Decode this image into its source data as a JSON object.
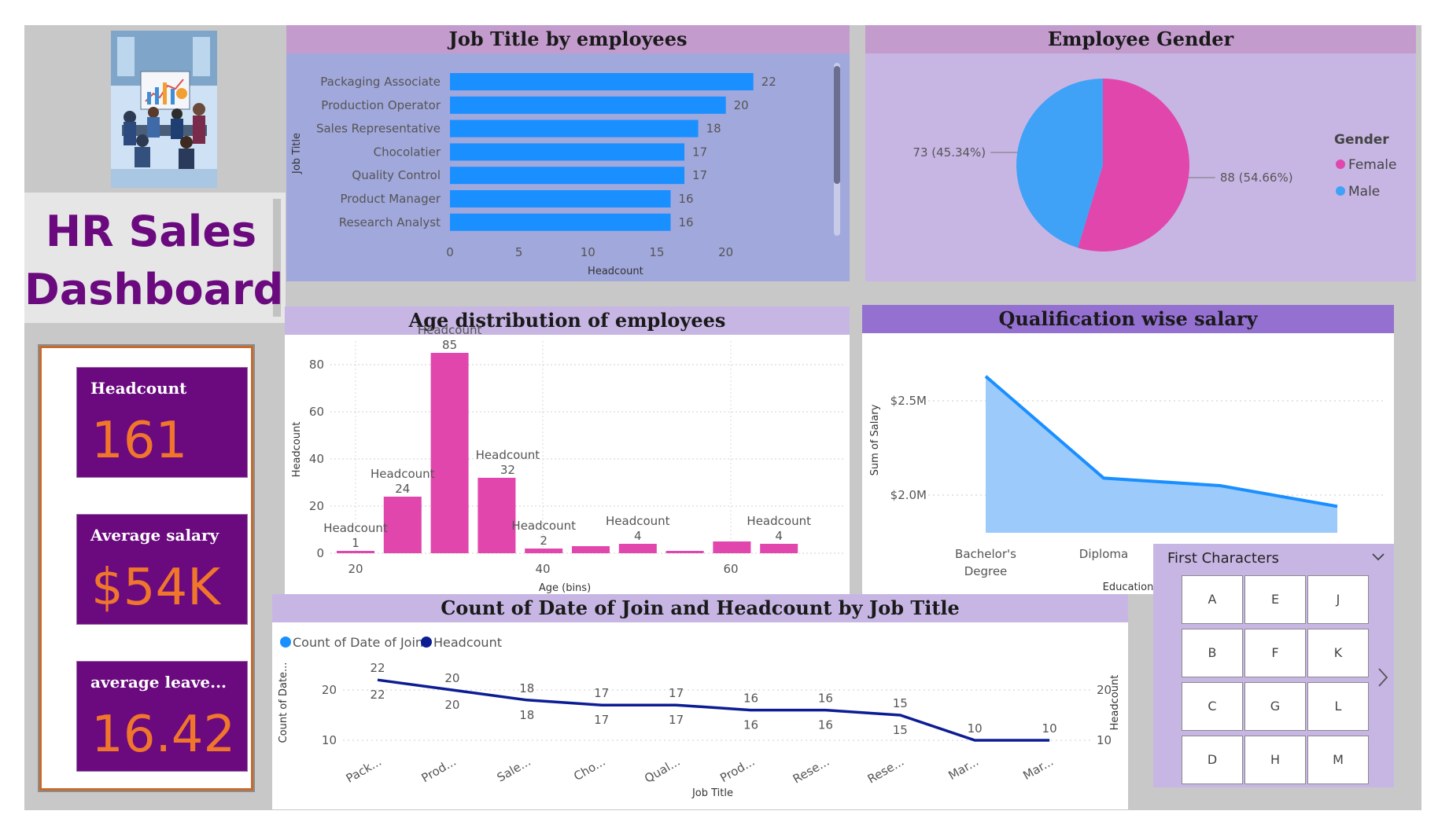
{
  "title": {
    "line1": "HR Sales",
    "line2": "Dashboard"
  },
  "kpis": {
    "headcount_label": "Headcount",
    "headcount_value": "161",
    "salary_label": "Average salary",
    "salary_value": "$54K",
    "leave_label": "average leave...",
    "leave_value": "16.42"
  },
  "panels": {
    "job_title": "Job Title by employees",
    "gender": "Employee Gender",
    "age": "Age distribution of employees",
    "qualification": "Qualification wise salary",
    "combo": "Count of Date of Join and Headcount by Job Title"
  },
  "slicer": {
    "title": "First Characters",
    "tiles": [
      "A",
      "E",
      "J",
      "B",
      "F",
      "K",
      "C",
      "G",
      "L",
      "D",
      "H",
      "M"
    ]
  },
  "colors": {
    "purple_dark": "#6a0a7e",
    "orange": "#f0762c",
    "bar_blue": "#1a8fff",
    "pink": "#e046ac",
    "male_blue": "#3fa2f6",
    "navy": "#0c1d94",
    "area_blue": "#9ccbfb"
  },
  "chart_data": [
    {
      "type": "bar",
      "title": "Job Title by employees",
      "xlabel": "Headcount",
      "ylabel": "Job Title",
      "categories": [
        "Packaging Associate",
        "Production Operator",
        "Sales Representative",
        "Chocolatier",
        "Quality Control",
        "Product Manager",
        "Research Analyst"
      ],
      "values": [
        22,
        20,
        18,
        17,
        17,
        16,
        16
      ],
      "xlim": [
        0,
        24
      ],
      "xticks": [
        "0",
        "5",
        "10",
        "15",
        "20"
      ]
    },
    {
      "type": "pie",
      "title": "Employee Gender",
      "legend_title": "Gender",
      "series": [
        {
          "name": "Female",
          "value": 88,
          "label": "88 (54.66%)"
        },
        {
          "name": "Male",
          "value": 73,
          "label": "73 (45.34%)"
        }
      ]
    },
    {
      "type": "bar",
      "title": "Age distribution of employees",
      "xlabel": "Age (bins)",
      "ylabel": "Headcount",
      "x": [
        20,
        25,
        30,
        35,
        40,
        45,
        50,
        55,
        60,
        65
      ],
      "values": [
        1,
        24,
        85,
        32,
        2,
        3,
        4,
        1,
        5,
        4
      ],
      "ylim": [
        0,
        90
      ],
      "yticks": [
        "0",
        "20",
        "40",
        "60",
        "80"
      ],
      "xticks": [
        "20",
        "40",
        "60"
      ],
      "data_labels": [
        {
          "name": "Headcount",
          "value": "1",
          "bin": 0
        },
        {
          "name": "Headcount",
          "value": "24",
          "bin": 1
        },
        {
          "name": "Headcount",
          "value": "85",
          "bin": 2
        },
        {
          "name": "Headcount",
          "value": "32",
          "bin": 3
        },
        {
          "name": "Headcount",
          "value": "2",
          "bin": 4
        },
        {
          "name": "Headcount",
          "value": "4",
          "bin": 6
        },
        {
          "name": "Headcount",
          "value": "4",
          "bin": 9
        }
      ]
    },
    {
      "type": "area",
      "title": "Qualification wise salary",
      "xlabel": "Education",
      "ylabel": "Sum of Salary",
      "categories": [
        "Bachelor's Degree",
        "Diploma",
        "",
        ""
      ],
      "category_lines": [
        [
          "Bachelor's",
          "Degree"
        ],
        [
          "Diploma"
        ]
      ],
      "values": [
        2.63,
        2.09,
        2.05,
        1.94
      ],
      "ylim": [
        1.78,
        2.78
      ],
      "yticks": [
        {
          "v": 2.5,
          "label": "$2.5M"
        },
        {
          "v": 2.0,
          "label": "$2.0M"
        }
      ]
    },
    {
      "type": "line",
      "title": "Count of Date of Join and Headcount by Job Title",
      "xlabel": "Job Title",
      "ylabel_left": "Count of Date...",
      "ylabel_right": "Headcount",
      "categories": [
        "Pack...",
        "Prod...",
        "Sale...",
        "Cho...",
        "Qual...",
        "Prod...",
        "Rese...",
        "Rese...",
        "Mar...",
        "Mar..."
      ],
      "ylim": [
        8,
        25
      ],
      "yticks": [
        "10",
        "20"
      ],
      "series": [
        {
          "name": "Count of Date of Join",
          "values": [
            22,
            20,
            18,
            17,
            17,
            16,
            16,
            15,
            10,
            10
          ]
        },
        {
          "name": "Headcount",
          "values": [
            22,
            20,
            18,
            17,
            17,
            16,
            16,
            15,
            10,
            10
          ]
        }
      ]
    }
  ]
}
